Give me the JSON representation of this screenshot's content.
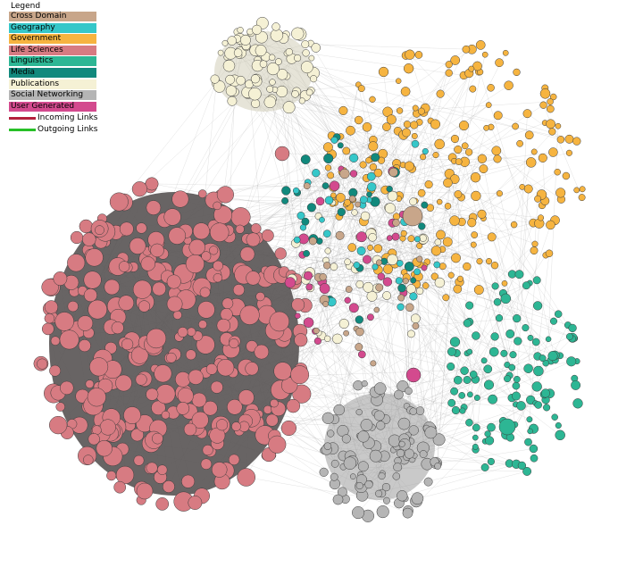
{
  "legend": {
    "title": "Legend",
    "categories": [
      {
        "label": "Cross Domain",
        "color": "#c8a68a"
      },
      {
        "label": "Geography",
        "color": "#35c7c9"
      },
      {
        "label": "Government",
        "color": "#f6b440"
      },
      {
        "label": "Life Sciences",
        "color": "#d77b82"
      },
      {
        "label": "Linguistics",
        "color": "#2db694"
      },
      {
        "label": "Media",
        "color": "#11897d"
      },
      {
        "label": "Publications",
        "color": "#f5f1d5"
      },
      {
        "label": "Social Networking",
        "color": "#b5b5b5"
      },
      {
        "label": "User Generated",
        "color": "#d34a8e"
      }
    ],
    "links": [
      {
        "label": "Incoming Links",
        "color": "#b4203c"
      },
      {
        "label": "Outgoing Links",
        "color": "#27c027"
      }
    ]
  }
}
